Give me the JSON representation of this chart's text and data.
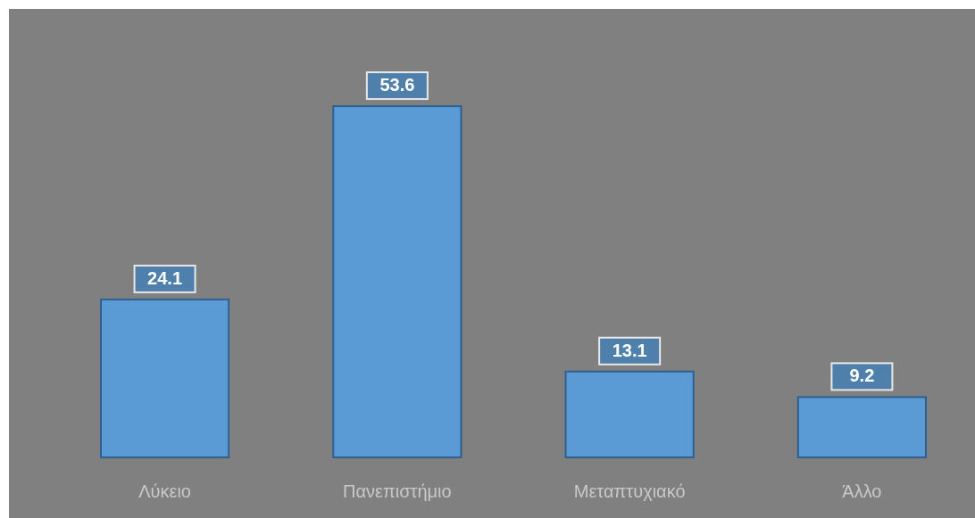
{
  "chart_data": {
    "type": "bar",
    "categories": [
      "Λύκειο",
      "Πανεπιστήμιο",
      "Μεταπτυχιακό",
      "Άλλο"
    ],
    "values": [
      24.1,
      53.6,
      13.1,
      9.2
    ],
    "color": "#5b9bd5",
    "data_labels": true
  }
}
